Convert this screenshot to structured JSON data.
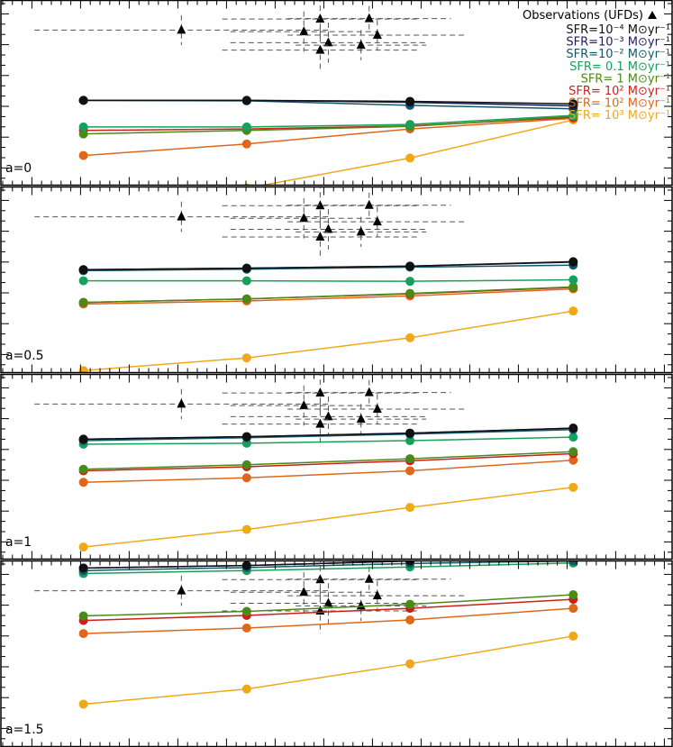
{
  "chart_data": {
    "type": "line",
    "x": [
      1,
      2,
      3,
      4
    ],
    "xlim": [
      0.5,
      4.6
    ],
    "ylim": [
      -4.15,
      -0.45
    ],
    "legend": {
      "placement": "top-right",
      "observations_label": "Observations (UFDs)",
      "entries": [
        {
          "label": "SFR=10⁻⁴ M⊙yr⁻¹",
          "color": "#111111"
        },
        {
          "label": "SFR=10⁻³ M⊙yr⁻¹",
          "color": "#1c1f5e"
        },
        {
          "label": "SFR=10⁻² M⊙yr⁻¹",
          "color": "#125a6a"
        },
        {
          "label": "SFR=  0.1 M⊙yr⁻¹",
          "color": "#17a05a"
        },
        {
          "label": "SFR=   1 M⊙yr⁻¹",
          "color": "#4a8a18"
        },
        {
          "label": "SFR=  10² M⊙yr⁻¹",
          "color": "#cc1f1a"
        },
        {
          "label": "SFR=  10² M⊙yr⁻¹",
          "color": "#e0661a"
        },
        {
          "label": "SFR=  10³ M⊙yr⁻¹",
          "color": "#f0a818"
        }
      ]
    },
    "observations": [
      {
        "x": 1.6,
        "y": -1.05,
        "xerr": 0.9,
        "yerr": 0.3
      },
      {
        "x": 2.35,
        "y": -1.08,
        "xerr": 0.45,
        "yerr": 0.4
      },
      {
        "x": 2.45,
        "y": -0.83,
        "xerr": 0.6,
        "yerr": 0.45
      },
      {
        "x": 2.5,
        "y": -1.3,
        "xerr": 0.6,
        "yerr": 0.4
      },
      {
        "x": 2.45,
        "y": -1.45,
        "xerr": 0.6,
        "yerr": 0.45
      },
      {
        "x": 2.7,
        "y": -1.35,
        "xerr": 0.4,
        "yerr": 0.3
      },
      {
        "x": 2.8,
        "y": -1.15,
        "xerr": 0.55,
        "yerr": 0.3
      },
      {
        "x": 2.75,
        "y": -0.82,
        "xerr": 0.5,
        "yerr": 0.25
      }
    ],
    "panels": [
      {
        "label": "a=0",
        "series": [
          {
            "name": "SFR=10⁻⁴ M⊙yr⁻¹",
            "values": [
              -2.45,
              -2.45,
              -2.47,
              -2.52
            ]
          },
          {
            "name": "SFR=10⁻³ M⊙yr⁻¹",
            "values": [
              -2.45,
              -2.45,
              -2.49,
              -2.56
            ]
          },
          {
            "name": "SFR=10⁻² M⊙yr⁻¹",
            "values": [
              -2.45,
              -2.46,
              -2.55,
              -2.62
            ]
          },
          {
            "name": "SFR=  0.1 M⊙yr⁻¹",
            "values": [
              -2.98,
              -2.98,
              -2.93,
              -2.75
            ]
          },
          {
            "name": "SFR=   1 M⊙yr⁻¹",
            "values": [
              -3.12,
              -3.05,
              -2.97,
              -2.77
            ]
          },
          {
            "name": "SFR=  10² M⊙yr⁻¹",
            "values": [
              -3.05,
              -3.02,
              -2.96,
              -2.79
            ]
          },
          {
            "name": "SFR=  10² M⊙yr⁻¹",
            "values": [
              -3.55,
              -3.32,
              -3.02,
              -2.81
            ]
          },
          {
            "name": "SFR=  10³ M⊙yr⁻¹",
            "values": [
              -4.6,
              -4.2,
              -3.6,
              -2.84
            ]
          }
        ]
      },
      {
        "label": "a=0.5",
        "series": [
          {
            "name": "SFR=10⁻⁴ M⊙yr⁻¹",
            "values": [
              -2.1,
              -2.07,
              -2.03,
              -1.94
            ]
          },
          {
            "name": "SFR=10⁻³ M⊙yr⁻¹",
            "values": [
              -2.1,
              -2.07,
              -2.03,
              -1.95
            ]
          },
          {
            "name": "SFR=10⁻² M⊙yr⁻¹",
            "values": [
              -2.12,
              -2.09,
              -2.05,
              -2.01
            ]
          },
          {
            "name": "SFR=  0.1 M⊙yr⁻¹",
            "values": [
              -2.32,
              -2.32,
              -2.33,
              -2.3
            ]
          },
          {
            "name": "SFR=   1 M⊙yr⁻¹",
            "values": [
              -2.75,
              -2.68,
              -2.57,
              -2.44
            ]
          },
          {
            "name": "SFR=  10² M⊙yr⁻¹",
            "values": [
              -2.75,
              -2.68,
              -2.58,
              -2.45
            ]
          },
          {
            "name": "SFR=  10² M⊙yr⁻¹",
            "values": [
              -2.78,
              -2.72,
              -2.62,
              -2.48
            ]
          },
          {
            "name": "SFR=  10³ M⊙yr⁻¹",
            "values": [
              -4.1,
              -3.85,
              -3.45,
              -2.92
            ]
          }
        ]
      },
      {
        "label": "a=1",
        "series": [
          {
            "name": "SFR=10⁻⁴ M⊙yr⁻¹",
            "values": [
              -1.75,
              -1.7,
              -1.63,
              -1.53
            ]
          },
          {
            "name": "SFR=10⁻³ M⊙yr⁻¹",
            "values": [
              -1.75,
              -1.7,
              -1.63,
              -1.53
            ]
          },
          {
            "name": "SFR=10⁻² M⊙yr⁻¹",
            "values": [
              -1.78,
              -1.72,
              -1.65,
              -1.56
            ]
          },
          {
            "name": "SFR=  0.1 M⊙yr⁻¹",
            "values": [
              -1.85,
              -1.83,
              -1.78,
              -1.71
            ]
          },
          {
            "name": "SFR=   1 M⊙yr⁻¹",
            "values": [
              -2.35,
              -2.26,
              -2.14,
              -2.0
            ]
          },
          {
            "name": "SFR=  10² M⊙yr⁻¹",
            "values": [
              -2.38,
              -2.3,
              -2.18,
              -2.04
            ]
          },
          {
            "name": "SFR=  10² M⊙yr⁻¹",
            "values": [
              -2.61,
              -2.52,
              -2.38,
              -2.17
            ]
          },
          {
            "name": "SFR=  10³ M⊙yr⁻¹",
            "values": [
              -3.9,
              -3.55,
              -3.11,
              -2.71
            ]
          }
        ]
      },
      {
        "label": "a=1.5",
        "series": [
          {
            "name": "SFR=10⁻⁴ M⊙yr⁻¹",
            "values": [
              -0.6,
              -0.55,
              -0.46,
              -0.35
            ]
          },
          {
            "name": "SFR=10⁻³ M⊙yr⁻¹",
            "values": [
              -0.6,
              -0.55,
              -0.46,
              -0.35
            ]
          },
          {
            "name": "SFR=10⁻² M⊙yr⁻¹",
            "values": [
              -0.65,
              -0.59,
              -0.51,
              -0.46
            ]
          },
          {
            "name": "SFR=  0.1 M⊙yr⁻¹",
            "values": [
              -0.71,
              -0.65,
              -0.58,
              -0.5
            ]
          },
          {
            "name": "SFR=   1 M⊙yr⁻¹",
            "values": [
              -1.55,
              -1.46,
              -1.32,
              -1.13
            ]
          },
          {
            "name": "SFR=  10² M⊙yr⁻¹",
            "values": [
              -1.64,
              -1.54,
              -1.4,
              -1.22
            ]
          },
          {
            "name": "SFR=  10² M⊙yr⁻¹",
            "values": [
              -1.9,
              -1.79,
              -1.63,
              -1.4
            ]
          },
          {
            "name": "SFR=  10³ M⊙yr⁻¹",
            "values": [
              -3.3,
              -3.0,
              -2.5,
              -1.95
            ]
          }
        ]
      }
    ]
  }
}
